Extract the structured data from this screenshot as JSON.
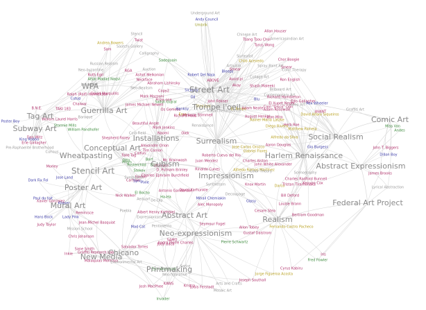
{
  "edge_color": "#d9d9d9",
  "movements": [
    {
      "key": "street",
      "label": "Street Art",
      "color": "#8a8a8a"
    },
    {
      "key": "graffiti",
      "label": "Guerrilla Art",
      "color": "#8a8a8a"
    },
    {
      "key": "tag",
      "label": "Tag Art",
      "color": "#8a8a8a"
    },
    {
      "key": "wpa",
      "label": "WPA",
      "color": "#8a8a8a"
    },
    {
      "key": "subway",
      "label": "Subway Art",
      "color": "#8a8a8a"
    },
    {
      "key": "conceptual",
      "label": "Conceptual Art",
      "color": "#8a8a8a"
    },
    {
      "key": "installations",
      "label": "Installations",
      "color": "#8a8a8a"
    },
    {
      "key": "surrealism",
      "label": "Surrealism",
      "color": "#8a8a8a"
    },
    {
      "key": "trompe",
      "label": "Trompe l'oeil",
      "color": "#8a8a8a"
    },
    {
      "key": "wheatpasting",
      "label": "Wheatpasting",
      "color": "#8a8a8a"
    },
    {
      "key": "stencil",
      "label": "Stencil Art",
      "color": "#8a8a8a"
    },
    {
      "key": "poster",
      "label": "Poster Art",
      "color": "#8a8a8a"
    },
    {
      "key": "mural",
      "label": "Mural Art",
      "color": "#8a8a8a"
    },
    {
      "key": "cubism",
      "label": "Cubism",
      "color": "#8a8a8a"
    },
    {
      "key": "impressionism",
      "label": "Impressionism",
      "color": "#8a8a8a"
    },
    {
      "key": "abstract",
      "label": "Abstract Art",
      "color": "#8a8a8a"
    },
    {
      "key": "neoexp",
      "label": "Neo-expressionism",
      "color": "#8a8a8a"
    },
    {
      "key": "realism",
      "label": "Realism",
      "color": "#8a8a8a"
    },
    {
      "key": "socialrealism",
      "label": "Social Realism",
      "color": "#8a8a8a"
    },
    {
      "key": "harlem",
      "label": "Harlem Renaissance",
      "color": "#8a8a8a"
    },
    {
      "key": "absexp",
      "label": "Abstract Expressionism",
      "color": "#8a8a8a"
    },
    {
      "key": "federal",
      "label": "Federal Art Project",
      "color": "#8a8a8a"
    },
    {
      "key": "comic",
      "label": "Comic Art",
      "color": "#8a8a8a"
    },
    {
      "key": "chicano",
      "label": "Chicano",
      "color": "#8a8a8a"
    },
    {
      "key": "newmedia",
      "label": "New Media",
      "color": "#8a8a8a"
    },
    {
      "key": "printmaking",
      "label": "Printmaking",
      "color": "#8a8a8a"
    }
  ],
  "nodes": [
    {
      "label": "Underground Art",
      "color": "#9a9a9a"
    },
    {
      "label": "Andy Council",
      "color": "#3b3ba8"
    },
    {
      "label": "Umbrik",
      "color": "#9a9a20"
    },
    {
      "label": "Chinese Art",
      "color": "#9a9a9a"
    },
    {
      "label": "Allan Houser",
      "color": "#b0306a"
    },
    {
      "label": "Tsang Tsou Choi",
      "color": "#b0306a"
    },
    {
      "label": "Tyrus Wong",
      "color": "#b0306a"
    },
    {
      "label": "Americanindian Art",
      "color": "#9a9a9a"
    },
    {
      "label": "Stencil",
      "color": "#9a9a9a"
    },
    {
      "label": "Twist",
      "color": "#b0306a"
    },
    {
      "label": "Saatchi Gallery",
      "color": "#9a9a9a"
    },
    {
      "label": "Andrea Bowers",
      "color": "#b8a020"
    },
    {
      "label": "Sadequain",
      "color": "#3b8a3b"
    },
    {
      "label": "Calligraphy",
      "color": "#9a9a9a"
    },
    {
      "label": "Sam",
      "color": "#b0306a"
    },
    {
      "label": "Chilo Acevedo",
      "color": "#b8a020"
    },
    {
      "label": "Chor Boogie",
      "color": "#b0306a"
    },
    {
      "label": "Surrealist",
      "color": "#9a9a9a"
    },
    {
      "label": "Smear",
      "color": "#b0306a"
    },
    {
      "label": "Color Therapy",
      "color": "#9a9a9a"
    },
    {
      "label": "Artivism",
      "color": "#9a9a9a"
    },
    {
      "label": "Spray Paint Art",
      "color": "#9a9a9a"
    },
    {
      "label": "Russian Realism",
      "color": "#9a9a9a"
    },
    {
      "label": "Auction",
      "color": "#9a9a9a"
    },
    {
      "label": "Neo-byzantine",
      "color": "#9a9a9a"
    },
    {
      "label": "RGA",
      "color": "#b0306a"
    },
    {
      "label": "Ashot Melkonian",
      "color": "#b0306a"
    },
    {
      "label": "Robert Del Naja",
      "color": "#3b3ba8"
    },
    {
      "label": "Bleeps",
      "color": "#3b3ba8"
    },
    {
      "label": "Smear",
      "color": "#b0306a"
    },
    {
      "label": "Ruth Egri",
      "color": "#b0306a"
    },
    {
      "label": "Afsar Madad Naqvi",
      "color": "#3b8a3b"
    },
    {
      "label": "Neckface",
      "color": "#b0306a"
    },
    {
      "label": "Indian Art",
      "color": "#9a9a9a"
    },
    {
      "label": "Abraham Lishinsky",
      "color": "#b0306a"
    },
    {
      "label": "ABOVE",
      "color": "#b0306a"
    },
    {
      "label": "Avoid pi",
      "color": "#b0306a"
    },
    {
      "label": "Collage Art",
      "color": "#9a9a9a"
    },
    {
      "label": "Ron English",
      "color": "#b0306a"
    },
    {
      "label": "Neo-Realism",
      "color": "#9a9a9a"
    },
    {
      "label": "Sickboy",
      "color": "#3b3ba8"
    },
    {
      "label": "Akay",
      "color": "#b0306a"
    },
    {
      "label": "Shash Maleeki",
      "color": "#b0306a"
    },
    {
      "label": "Billboard Art",
      "color": "#9a9a9a"
    },
    {
      "label": "David Marquillis",
      "color": "#b0306a"
    },
    {
      "label": "Copy2",
      "color": "#b0306a"
    },
    {
      "label": "Contemporary Art",
      "color": "#9a9a9a"
    },
    {
      "label": "Mark Mazzoni",
      "color": "#b0306a"
    },
    {
      "label": "Oil",
      "color": "#3b3ba8"
    },
    {
      "label": "Richard Hambleton",
      "color": "#b0306a"
    },
    {
      "label": "Cutup",
      "color": "#3b3ba8"
    },
    {
      "label": "Ralph (Ralf) Henricksen",
      "color": "#b0306a"
    },
    {
      "label": "Prize-one",
      "color": "#b0306a"
    },
    {
      "label": "Salish Gujral",
      "color": "#3b8a3b"
    },
    {
      "label": "John Fekner",
      "color": "#b0306a"
    },
    {
      "label": "Dan Witz",
      "color": "#b0306a"
    },
    {
      "label": "Ellis Gallagher",
      "color": "#b0306a"
    },
    {
      "label": "Video Art",
      "color": "#9a9a9a"
    },
    {
      "label": "Rex Wheeler",
      "color": "#3b3ba8"
    },
    {
      "label": "Blu",
      "color": "#3b3ba8"
    },
    {
      "label": "B.N.E.",
      "color": "#b0306a"
    },
    {
      "label": "TAKI 183",
      "color": "#b0306a"
    },
    {
      "label": "El Xupet Negre",
      "color": "#b0306a"
    },
    {
      "label": "Cool \"Disco\" Dan",
      "color": "#b0306a"
    },
    {
      "label": "Graffiti Art",
      "color": "#9a9a9a"
    },
    {
      "label": "Chaiwar",
      "color": "#b0306a"
    },
    {
      "label": "James Michael Newell",
      "color": "#b0306a"
    },
    {
      "label": "AVANT",
      "color": "#b0306a"
    },
    {
      "label": "Baroque",
      "color": "#9a9a9a"
    },
    {
      "label": "Os Gemeos",
      "color": "#b0306a"
    },
    {
      "label": "Banksy",
      "color": "#3b3ba8"
    },
    {
      "label": "Sten Lex",
      "color": "#b8a020"
    },
    {
      "label": "El Tempe",
      "color": "#b8a020"
    },
    {
      "label": "Adam Neate",
      "color": "#b0306a"
    },
    {
      "label": "Adam Rosowski",
      "color": "#b0306a"
    },
    {
      "label": "David Alfaro Siqueiros",
      "color": "#b8a020"
    },
    {
      "label": "Poster Boy",
      "color": "#3b3ba8"
    },
    {
      "label": "William Laurel Harris",
      "color": "#b0306a"
    },
    {
      "label": "Stormie Mills",
      "color": "#3b8a3b"
    },
    {
      "label": "Beautiful Angle",
      "color": "#b0306a"
    },
    {
      "label": "Eme",
      "color": "#b8a020"
    },
    {
      "label": "Melanie Stimmell",
      "color": "#b0306a"
    },
    {
      "label": "Richard Haas",
      "color": "#b0306a"
    },
    {
      "label": "Italian Renaissance",
      "color": "#9a9a9a"
    },
    {
      "label": "August Henkel",
      "color": "#b0306a"
    },
    {
      "label": "Jean Miro",
      "color": "#b0306a"
    },
    {
      "label": "Rainer Maria Latzke",
      "color": "#b8a020"
    },
    {
      "label": "Herb Roe",
      "color": "#b0306a"
    },
    {
      "label": "Diego Rivera",
      "color": "#b8a020"
    },
    {
      "label": "Matthew Pamela",
      "color": "#b8a020"
    },
    {
      "label": "Miss Van",
      "color": "#3b8a3b"
    },
    {
      "label": "Andes",
      "color": "#3b8a3b"
    },
    {
      "label": "William Pandhofer",
      "color": "#3b8a3b"
    },
    {
      "label": "Mark Jenkins",
      "color": "#b0306a"
    },
    {
      "label": "Naomi",
      "color": "#b0306a"
    },
    {
      "label": "Renaissance",
      "color": "#9a9a9a"
    },
    {
      "label": "Olek",
      "color": "#b0306a"
    },
    {
      "label": "King Robbo",
      "color": "#3b3ba8"
    },
    {
      "label": "Erie Gallagher",
      "color": "#b0306a"
    },
    {
      "label": "Cola Field",
      "color": "#9a9a9a"
    },
    {
      "label": "Shepherd Fairey",
      "color": "#b0306a"
    },
    {
      "label": "Pre-Raphaelite Brotherhood",
      "color": "#9a9a9a"
    },
    {
      "label": "Curious",
      "color": "#9a9a9a"
    },
    {
      "label": "Alfredo da Silva",
      "color": "#b8a020"
    },
    {
      "label": "Aaron Douglas",
      "color": "#b0306a"
    },
    {
      "label": "Gio Burgess",
      "color": "#3b3ba8"
    },
    {
      "label": "John T. Biggers",
      "color": "#b0306a"
    },
    {
      "label": "Alexandre Orion",
      "color": "#b0306a"
    },
    {
      "label": "Jose Carlos Orozco",
      "color": "#b8a020"
    },
    {
      "label": "Tim Conlon",
      "color": "#b0306a"
    },
    {
      "label": "Gabriel Flores",
      "color": "#b8a020"
    },
    {
      "label": "Faile",
      "color": "#b0306a"
    },
    {
      "label": "Tag",
      "color": "#b0306a"
    },
    {
      "label": "Calfun",
      "color": "#b0306a"
    },
    {
      "label": "Roberto Cueva del Rio",
      "color": "#b0306a"
    },
    {
      "label": "Dillon Boy",
      "color": "#3b3ba8"
    },
    {
      "label": "Otto",
      "color": "#3b8a3b"
    },
    {
      "label": "Borf",
      "color": "#3b8a3b"
    },
    {
      "label": "Mr. Brainwash",
      "color": "#b0306a"
    },
    {
      "label": "Juan Mendez",
      "color": "#b0306a"
    },
    {
      "label": "Charles Alston",
      "color": "#b0306a"
    },
    {
      "label": "John White Alexander",
      "color": "#b0306a"
    },
    {
      "label": "Morley",
      "color": "#b0306a"
    },
    {
      "label": "Posterchild",
      "color": "#3b8a3b"
    },
    {
      "label": "Elos",
      "color": "#3b8a3b"
    },
    {
      "label": "Ultimate",
      "color": "#b0306a"
    },
    {
      "label": "Alfredo Ramos Martinez",
      "color": "#b8a020"
    },
    {
      "label": "Prism",
      "color": "#3b8a3b"
    },
    {
      "label": "D. Putnam Brinley",
      "color": "#b0306a"
    },
    {
      "label": "Rinaldo Cunes",
      "color": "#b0306a"
    },
    {
      "label": "Stekev",
      "color": "#3b8a3b"
    },
    {
      "label": "Jose Land",
      "color": "#3b3ba8"
    },
    {
      "label": "Swoon",
      "color": "#b0306a"
    },
    {
      "label": "Cartrain",
      "color": "#b0306a"
    },
    {
      "label": "Charles Ephraim Burchfield",
      "color": "#b0306a"
    },
    {
      "label": "Charles Radford Bunnell",
      "color": "#b0306a"
    },
    {
      "label": "Kenyon Cox",
      "color": "#b0306a"
    },
    {
      "label": "Color Theory",
      "color": "#9a9a9a"
    },
    {
      "label": "James Brooks",
      "color": "#b0306a"
    },
    {
      "label": "Scenography",
      "color": "#9a9a9a"
    },
    {
      "label": "Dark Fix Fol",
      "color": "#3b3ba8"
    },
    {
      "label": "Sync",
      "color": "#3b3ba8"
    },
    {
      "label": "Pixie",
      "color": "#3b3ba8"
    },
    {
      "label": "Symbolism",
      "color": "#9a9a9a"
    },
    {
      "label": "Synthetism",
      "color": "#9a9a9a"
    },
    {
      "label": "Knox Martin",
      "color": "#b0306a"
    },
    {
      "label": "Darco",
      "color": "#b8a020"
    },
    {
      "label": "Lyrical Abstraction",
      "color": "#9a9a9a"
    },
    {
      "label": "Tristan Tiramonaka",
      "color": "#b0306a"
    },
    {
      "label": "Paul du toit",
      "color": "#3b3ba8"
    },
    {
      "label": "David Karhunkle",
      "color": "#b0306a"
    },
    {
      "label": "Bill Deford",
      "color": "#b0306a"
    },
    {
      "label": "Xavier Gonzalez",
      "color": "#b0306a"
    },
    {
      "label": "Kilaser",
      "color": "#3b3ba8"
    },
    {
      "label": "Antonio Gandardoe",
      "color": "#b0306a"
    },
    {
      "label": "Decoupage",
      "color": "#9a9a9a"
    },
    {
      "label": "Aeduart",
      "color": "#9a9a9a"
    },
    {
      "label": "El Bocho",
      "color": "#3b8a3b"
    },
    {
      "label": "Nick Walker",
      "color": "#b0306a"
    },
    {
      "label": "Ha-Ha",
      "color": "#3b8a3b"
    },
    {
      "label": "De-Dip",
      "color": "#9a9a9a"
    },
    {
      "label": "Alec Monopoly",
      "color": "#b0306a"
    },
    {
      "label": "Louise Brann",
      "color": "#b0306a"
    },
    {
      "label": "Mihail Chemiakin",
      "color": "#3b3ba8"
    },
    {
      "label": "Gipsy",
      "color": "#3b3ba8"
    },
    {
      "label": "Albert Henry Krehbiel",
      "color": "#b0306a"
    },
    {
      "label": "Puebla",
      "color": "#9a9a9a"
    },
    {
      "label": "Cesare Stea",
      "color": "#b0306a"
    },
    {
      "label": "Reminisce",
      "color": "#b0306a"
    },
    {
      "label": "Bertram Goodman",
      "color": "#b0306a"
    },
    {
      "label": "Hans Bock",
      "color": "#3b3ba8"
    },
    {
      "label": "Lady Pink",
      "color": "#3b3ba8"
    },
    {
      "label": "Jean-Michel Basquiat",
      "color": "#b0306a"
    },
    {
      "label": "Mad Cat",
      "color": "#3b3ba8"
    },
    {
      "label": "Expressionism",
      "color": "#9a9a9a"
    },
    {
      "label": "Judy Taylor",
      "color": "#b0306a"
    },
    {
      "label": "Seymour Fogel",
      "color": "#b0306a"
    },
    {
      "label": "Allon Tobey",
      "color": "#b0306a"
    },
    {
      "label": "Fernando Castro Pacheco",
      "color": "#b8a020"
    },
    {
      "label": "Mission School",
      "color": "#9a9a9a"
    },
    {
      "label": "Pentimento",
      "color": "#9a9a9a"
    },
    {
      "label": "Gustaf Dalstrom",
      "color": "#b0306a"
    },
    {
      "label": "Chris Johanson",
      "color": "#b0306a"
    },
    {
      "label": "Salvador Torres",
      "color": "#b0306a"
    },
    {
      "label": "Judy Baca",
      "color": "#b0306a"
    },
    {
      "label": "Andra Pierre Charles",
      "color": "#b0306a"
    },
    {
      "label": "Pierre Schwartz",
      "color": "#3b8a3b"
    },
    {
      "label": "SAMO",
      "color": "#b0306a"
    },
    {
      "label": "Sane Smith",
      "color": "#b0306a"
    },
    {
      "label": "Inkie",
      "color": "#b0306a"
    },
    {
      "label": "Graffiti Research Lab",
      "color": "#b0306a"
    },
    {
      "label": "Malaquias Montoya",
      "color": "#b0306a"
    },
    {
      "label": "Environmental Art",
      "color": "#9a9a9a"
    },
    {
      "label": "Iris",
      "color": "#b0306a"
    },
    {
      "label": "Fred Fowler",
      "color": "#3b8a3b"
    },
    {
      "label": "Satire",
      "color": "#9a9a9a"
    },
    {
      "label": "Esm Antichiali",
      "color": "#3b8a3b"
    },
    {
      "label": "Neo-figurative",
      "color": "#9a9a9a"
    },
    {
      "label": "KAWS",
      "color": "#b0306a"
    },
    {
      "label": "Cyrus Kabiru",
      "color": "#b0306a"
    },
    {
      "label": "Jorge Figueroa Acosta",
      "color": "#b8a020"
    },
    {
      "label": "Josh MacPhee",
      "color": "#b0306a"
    },
    {
      "label": "Kristra",
      "color": "#b0306a"
    },
    {
      "label": "Louis Ferstadt",
      "color": "#b0306a"
    },
    {
      "label": "Joseph Southall",
      "color": "#b0306a"
    },
    {
      "label": "Arts and Crafts",
      "color": "#9a9a9a"
    },
    {
      "label": "Mosaic Art",
      "color": "#9a9a9a"
    },
    {
      "label": "Invader",
      "color": "#3b8a3b"
    }
  ]
}
